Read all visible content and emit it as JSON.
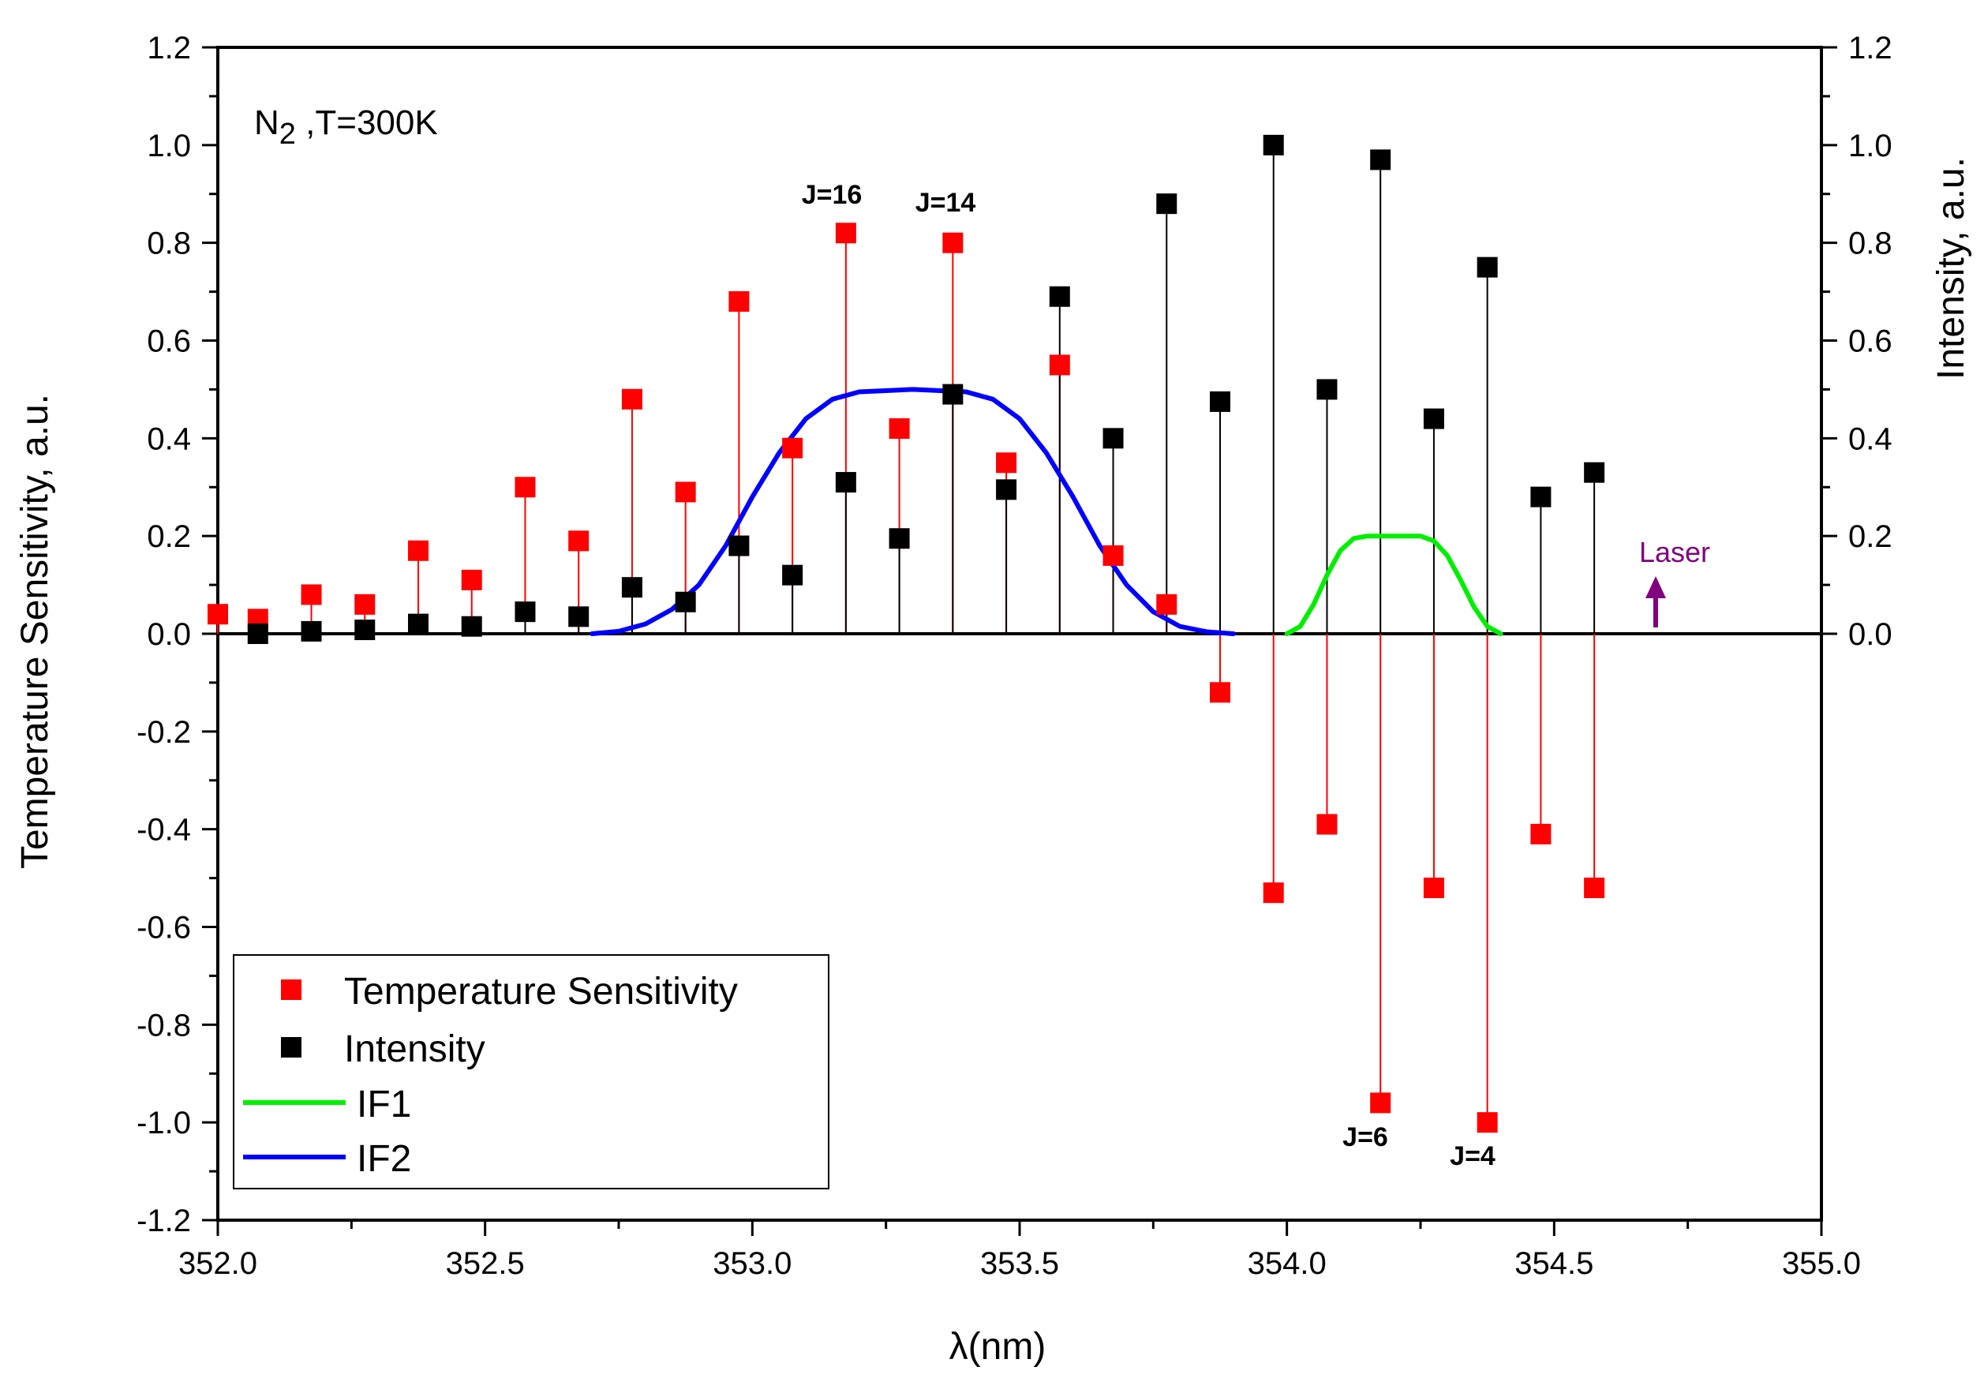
{
  "chart_data": {
    "type": "scatter",
    "title": "",
    "xlabel": "λ(nm)",
    "ylabel_left": "Temperature Sensitivity, a.u.",
    "ylabel_right": "Intensity, a.u.",
    "xlim": [
      352.0,
      355.0
    ],
    "ylim_left": [
      -1.2,
      1.2
    ],
    "ylim_right": [
      -1.2,
      1.2
    ],
    "x_ticks": [
      "352.0",
      "352.5",
      "353.0",
      "353.5",
      "354.0",
      "354.5",
      "355.0"
    ],
    "y_ticks_left": [
      "1.2",
      "1.0",
      "0.8",
      "0.6",
      "0.4",
      "0.2",
      "0.0",
      "-0.2",
      "-0.4",
      "-0.6",
      "-0.8",
      "-1.0",
      "-1.2"
    ],
    "y_ticks_right": [
      "1.2",
      "1.0",
      "0.8",
      "0.6",
      "0.4",
      "0.2",
      "0.0"
    ],
    "series": [
      {
        "name": "Temperature Sensitivity",
        "color": "#ff0000",
        "marker": "square",
        "x": [
          352.0,
          352.075,
          352.175,
          352.275,
          352.375,
          352.475,
          352.575,
          352.675,
          352.775,
          352.875,
          352.975,
          353.075,
          353.175,
          353.275,
          353.375,
          353.475,
          353.575,
          353.675,
          353.775,
          353.875,
          353.975,
          354.075,
          354.175,
          354.275,
          354.375,
          354.475,
          354.575
        ],
        "y": [
          0.04,
          0.03,
          0.08,
          0.06,
          0.17,
          0.11,
          0.3,
          0.19,
          0.48,
          0.29,
          0.68,
          0.38,
          0.82,
          0.42,
          0.8,
          0.35,
          0.55,
          0.16,
          0.06,
          -0.12,
          -0.53,
          -0.39,
          -0.96,
          -0.52,
          -1.0,
          -0.41,
          -0.52
        ]
      },
      {
        "name": "Intensity",
        "color": "#000000",
        "marker": "square",
        "x": [
          352.075,
          352.175,
          352.275,
          352.375,
          352.475,
          352.575,
          352.675,
          352.775,
          352.875,
          352.975,
          353.075,
          353.175,
          353.275,
          353.375,
          353.475,
          353.575,
          353.675,
          353.775,
          353.875,
          353.975,
          354.075,
          354.175,
          354.275,
          354.375,
          354.475,
          354.575
        ],
        "y": [
          0.0,
          0.005,
          0.008,
          0.02,
          0.015,
          0.045,
          0.035,
          0.095,
          0.065,
          0.18,
          0.12,
          0.31,
          0.195,
          0.49,
          0.295,
          0.69,
          0.4,
          0.88,
          0.475,
          1.0,
          0.5,
          0.97,
          0.44,
          0.75,
          0.28,
          0.33
        ]
      },
      {
        "name": "IF1",
        "color": "#00ee00",
        "type": "line",
        "x": [
          354.0,
          354.025,
          354.05,
          354.075,
          354.1,
          354.125,
          354.15,
          354.2,
          354.25,
          354.275,
          354.3,
          354.325,
          354.35,
          354.375,
          354.4
        ],
        "y": [
          0.0,
          0.015,
          0.06,
          0.12,
          0.17,
          0.195,
          0.2,
          0.2,
          0.2,
          0.19,
          0.16,
          0.11,
          0.055,
          0.015,
          0.0
        ]
      },
      {
        "name": "IF2",
        "color": "#0000ff",
        "type": "line",
        "x": [
          352.7,
          352.75,
          352.8,
          352.85,
          352.9,
          352.95,
          353.0,
          353.05,
          353.1,
          353.15,
          353.2,
          353.3,
          353.4,
          353.45,
          353.5,
          353.55,
          353.6,
          353.65,
          353.7,
          353.75,
          353.8,
          353.85,
          353.9
        ],
        "y": [
          0.0,
          0.005,
          0.02,
          0.05,
          0.1,
          0.18,
          0.28,
          0.37,
          0.44,
          0.48,
          0.495,
          0.5,
          0.495,
          0.48,
          0.44,
          0.37,
          0.28,
          0.18,
          0.1,
          0.045,
          0.015,
          0.004,
          0.0
        ]
      }
    ],
    "legend": {
      "position": "bottom-left",
      "entries": [
        "Temperature Sensitivity",
        "Intensity",
        "IF1",
        "IF2"
      ]
    },
    "annotations": {
      "sample": "N₂ ,T=300K",
      "sample_main": "N",
      "sample_sub": "2",
      "sample_rest": " ,T=300K",
      "j16": "J=16",
      "j14": "J=14",
      "j6": "J=6",
      "j4": "J=4",
      "laser": "Laser",
      "laser_x": 354.7,
      "laser_color": "#800080"
    }
  }
}
